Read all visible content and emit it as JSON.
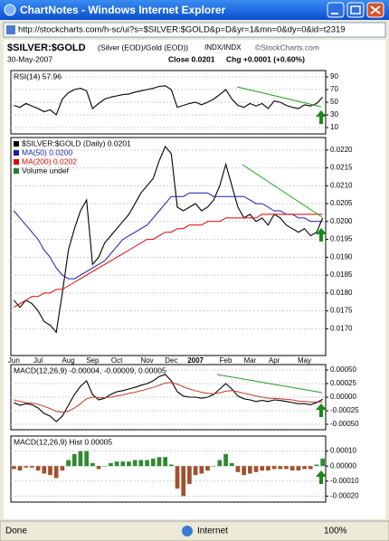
{
  "window": {
    "title": "ChartNotes - Windows Internet Explorer",
    "url": "http://stockcharts.com/h-sc/ui?s=$SILVER:$GOLD&p=D&yr=1&mn=0&dy=0&id=t2319",
    "status": "Done",
    "zone": "Internet",
    "zoom": "100%"
  },
  "chart_header": {
    "symbol": "$SILVER:$GOLD",
    "description": "(Silver (EOD)/Gold (EOD))",
    "exchange": "INDX/INDX",
    "copyright": "©StockCharts.com",
    "date": "30-May-2007",
    "close": "Close 0.0201",
    "change": "Chg +0.0001 (+0.60%)"
  },
  "chart_data": [
    {
      "type": "line",
      "title": "RSI(14) 57.96",
      "color": "#000000",
      "values": [
        45,
        42,
        48,
        44,
        40,
        35,
        38,
        30,
        55,
        65,
        70,
        72,
        68,
        40,
        48,
        55,
        58,
        60,
        62,
        63,
        66,
        68,
        70,
        72,
        75,
        76,
        70,
        42,
        45,
        48,
        50,
        46,
        50,
        55,
        62,
        70,
        55,
        45,
        42,
        48,
        44,
        48,
        40,
        52,
        50,
        45,
        42,
        40,
        46,
        44,
        48,
        57.96
      ],
      "ylim": [
        0,
        100
      ],
      "yticks": [
        90,
        70,
        50,
        30,
        10
      ],
      "grid": true
    },
    {
      "type": "line",
      "categories": [
        "Jun",
        null,
        null,
        null,
        "Jul",
        null,
        null,
        null,
        null,
        "Aug",
        null,
        null,
        null,
        "Sep",
        null,
        null,
        null,
        "Oct",
        null,
        null,
        null,
        null,
        "Nov",
        null,
        null,
        null,
        "Dec",
        null,
        null,
        null,
        "2007",
        null,
        null,
        null,
        null,
        "Feb",
        null,
        null,
        null,
        "Mar",
        null,
        null,
        null,
        "Apr",
        null,
        null,
        null,
        null,
        "May",
        null,
        null,
        null
      ],
      "series": [
        {
          "name": "$SILVER:$GOLD (Daily) 0.0201",
          "color": "#000000",
          "values": [
            0.0178,
            0.0176,
            0.0178,
            0.0177,
            0.0175,
            0.0172,
            0.0171,
            0.0169,
            0.018,
            0.0192,
            0.0198,
            0.0203,
            0.0206,
            0.0188,
            0.019,
            0.0194,
            0.0196,
            0.0198,
            0.02,
            0.0202,
            0.0205,
            0.0208,
            0.021,
            0.0212,
            0.0217,
            0.0221,
            0.0219,
            0.0204,
            0.0203,
            0.0204,
            0.0205,
            0.0203,
            0.0204,
            0.0206,
            0.021,
            0.0216,
            0.021,
            0.0204,
            0.0201,
            0.0202,
            0.02,
            0.0201,
            0.0199,
            0.0202,
            0.0201,
            0.0199,
            0.0198,
            0.0197,
            0.0198,
            0.0196,
            0.0197,
            0.0201
          ]
        },
        {
          "name": "MA(50) 0.0200",
          "color": "#1a1aa8",
          "values": [
            0.0203,
            0.0201,
            0.0199,
            0.0197,
            0.0195,
            0.0192,
            0.019,
            0.0187,
            0.0185,
            0.0184,
            0.0184,
            0.0185,
            0.0186,
            0.0187,
            0.0188,
            0.0189,
            0.0191,
            0.0193,
            0.0195,
            0.0196,
            0.0197,
            0.0198,
            0.0199,
            0.0201,
            0.0203,
            0.0205,
            0.0207,
            0.0207,
            0.0207,
            0.0208,
            0.0208,
            0.0208,
            0.0208,
            0.0207,
            0.0207,
            0.0207,
            0.0207,
            0.0207,
            0.0207,
            0.0206,
            0.0205,
            0.0205,
            0.0204,
            0.0203,
            0.0203,
            0.0202,
            0.0202,
            0.0201,
            0.0201,
            0.02,
            0.02,
            0.02
          ]
        },
        {
          "name": "MA(200) 0.0202",
          "color": "#e00000",
          "values": [
            0.0176,
            0.0177,
            0.0178,
            0.0179,
            0.0179,
            0.018,
            0.018,
            0.0181,
            0.0181,
            0.0182,
            0.0183,
            0.0184,
            0.0185,
            0.0186,
            0.0187,
            0.0188,
            0.0189,
            0.019,
            0.0191,
            0.0192,
            0.0193,
            0.0194,
            0.0195,
            0.0195,
            0.0196,
            0.0197,
            0.0197,
            0.0198,
            0.0198,
            0.0199,
            0.0199,
            0.0199,
            0.02,
            0.02,
            0.02,
            0.0201,
            0.0201,
            0.0201,
            0.0201,
            0.0201,
            0.0201,
            0.0202,
            0.0202,
            0.0202,
            0.0202,
            0.0202,
            0.0202,
            0.0202,
            0.0202,
            0.0202,
            0.0202,
            0.0202
          ]
        }
      ],
      "note": "Volume undef",
      "ylim": [
        0.01625,
        0.02235
      ],
      "yticks": [
        {
          "value": 0.022,
          "label": "0.0220"
        },
        {
          "value": 0.0215,
          "label": "0.0215"
        },
        {
          "value": 0.021,
          "label": "0.0210"
        },
        {
          "value": 0.0205,
          "label": "0.0205"
        },
        {
          "value": 0.02,
          "label": "0.0200"
        },
        {
          "value": 0.0195,
          "label": "0.0195"
        },
        {
          "value": 0.019,
          "label": "0.0190"
        },
        {
          "value": 0.0185,
          "label": "0.0185"
        },
        {
          "value": 0.018,
          "label": "0.0180"
        },
        {
          "value": 0.0175,
          "label": "0.0175"
        },
        {
          "value": 0.017,
          "label": "0.0170"
        }
      ],
      "grid": true
    },
    {
      "type": "line",
      "title": "MACD(12,26,9) -0.00004, -0.00009, 0.00005",
      "series": [
        {
          "color": "#000000",
          "values": [
            -0.0001,
            -0.00015,
            -0.00012,
            -0.00014,
            -0.0002,
            -0.0003,
            -0.00035,
            -0.00045,
            -0.00035,
            -0.00015,
            5e-05,
            0.0002,
            0.0003,
            5e-05,
            -5e-05,
            -2e-05,
            5e-05,
            0.0001,
            0.00012,
            0.00015,
            0.00018,
            0.00022,
            0.00025,
            0.0003,
            0.00038,
            0.00042,
            0.0003,
            0.0001,
            2e-05,
            0,
            0,
            -2e-05,
            0,
            5e-05,
            0.00015,
            0.00025,
            0.00015,
            2e-05,
            -3e-05,
            -5e-05,
            -8e-05,
            -6e-05,
            -8e-05,
            -5e-05,
            -6e-05,
            -8e-05,
            -0.0001,
            -0.00012,
            -0.00012,
            -0.00014,
            -0.0001,
            -4e-05
          ]
        },
        {
          "color": "#c0392b",
          "values": [
            -5e-05,
            -8e-05,
            -0.0001,
            -0.00011,
            -0.00013,
            -0.00017,
            -0.00021,
            -0.00026,
            -0.00028,
            -0.00026,
            -0.0002,
            -0.00012,
            -3e-05,
            0,
            -1e-05,
            -1e-05,
            0,
            2e-05,
            4e-05,
            7e-05,
            9e-05,
            0.00012,
            0.00015,
            0.00018,
            0.00022,
            0.00026,
            0.00027,
            0.00024,
            0.00019,
            0.00015,
            0.00012,
            9e-05,
            7e-05,
            6e-05,
            8e-05,
            0.00011,
            0.00012,
            0.0001,
            7e-05,
            5e-05,
            2e-05,
            0,
            -2e-05,
            -2e-05,
            -3e-05,
            -4e-05,
            -5e-05,
            -7e-05,
            -8e-05,
            -9e-05,
            -9e-05,
            -9e-05
          ]
        }
      ],
      "ylim": [
        -0.0006,
        0.0006
      ],
      "yticks": [
        {
          "value": 0.0005,
          "label": "0.00050"
        },
        {
          "value": 0.00025,
          "label": "0.00025"
        },
        {
          "value": 0,
          "label": "0.00000"
        },
        {
          "value": -0.00025,
          "label": "-0.00025"
        },
        {
          "value": -0.0005,
          "label": "-0.00050"
        }
      ],
      "grid": true
    },
    {
      "type": "bar",
      "title": "MACD(12,26,9) Hist 0.00005",
      "colors": {
        "up": "#2e8b2e",
        "down": "#a0522d"
      },
      "values": [
        -2e-05,
        -3e-05,
        -1e-05,
        -1e-05,
        -3e-05,
        -5e-05,
        -6e-05,
        -8e-05,
        -3e-05,
        4e-05,
        8e-05,
        0.0001,
        0.0001,
        2e-05,
        -2e-05,
        0,
        2e-05,
        3e-05,
        3e-05,
        3e-05,
        4e-05,
        4e-05,
        4e-05,
        5e-05,
        6e-05,
        6e-05,
        1e-05,
        -0.00015,
        -0.0002,
        -0.00012,
        -6e-05,
        -5e-05,
        -3e-05,
        0,
        4e-05,
        8e-05,
        2e-05,
        -4e-05,
        -6e-05,
        -5e-05,
        -4e-05,
        -3e-05,
        -3e-05,
        -2e-05,
        -2e-05,
        -2e-05,
        -3e-05,
        -3e-05,
        -2e-05,
        -2e-05,
        1e-05,
        5e-05
      ],
      "ylim": [
        -0.00024,
        0.0002
      ],
      "yticks": [
        {
          "value": 0.0001,
          "label": "0.00010"
        },
        {
          "value": 0,
          "label": "0.00000"
        },
        {
          "value": -0.0001,
          "label": "-0.00010"
        },
        {
          "value": -0.0002,
          "label": "-0.00020"
        }
      ],
      "grid": true
    }
  ]
}
